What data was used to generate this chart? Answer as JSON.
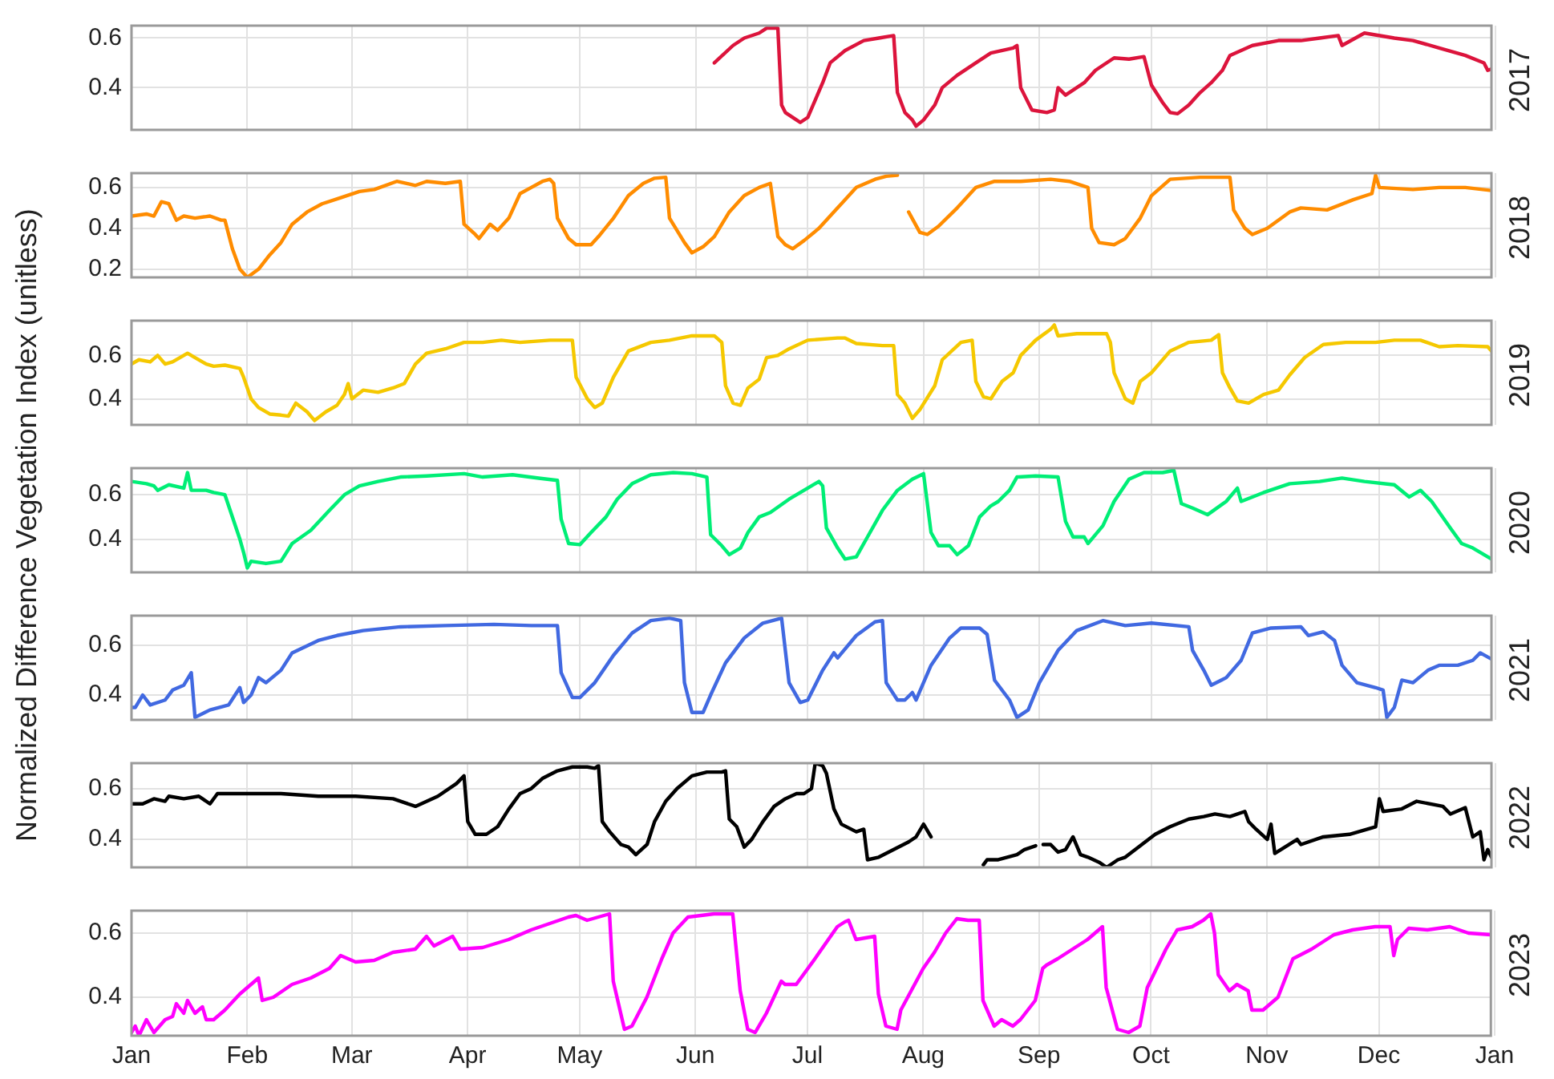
{
  "chart_data": [
    {
      "type": "line",
      "xlim": [
        "--01-01",
        "--12-31"
      ],
      "ylim": [
        0.23,
        0.65
      ],
      "yticks": [
        0.4,
        0.6
      ],
      "grid": true,
      "tick_labels": "y",
      "x": [
        "--06-06",
        "--06-11",
        "--06-14",
        "--06-18",
        "--06-20",
        "--06-23",
        "--06-24",
        "--06-25",
        "--06-28",
        "--06-29",
        "--07-01",
        "--07-03",
        "--07-05",
        "--07-07",
        "--07-11",
        "--07-16",
        "--07-20",
        "--07-24",
        "--07-25",
        "--07-27",
        "--07-29",
        "--07-30",
        "--08-01",
        "--08-04",
        "--08-06",
        "--08-10",
        "--08-15",
        "--08-19",
        "--08-25",
        "--08-26",
        "--08-27",
        "--08-30",
        "--09-03",
        "--09-05",
        "--09-06",
        "--09-08",
        "--09-13",
        "--09-16",
        "--09-18",
        "--09-21",
        "--09-25",
        "--09-29",
        "--10-01",
        "--10-04",
        "--10-06",
        "--10-08",
        "--10-11",
        "--10-14",
        "--10-17",
        "--10-20",
        "--10-22",
        "--10-28",
        "--11-04",
        "--11-10",
        "--11-15",
        "--11-20",
        "--11-21",
        "--11-27",
        "--12-05",
        "--12-10",
        "--12-17",
        "--12-24",
        "--12-29",
        "--12-30",
        "--12-31"
      ],
      "series": [
        {
          "name": "2017",
          "color": "#dc143c",
          "values": [
            0.5,
            0.57,
            0.6,
            0.62,
            0.64,
            0.64,
            0.33,
            0.3,
            0.27,
            0.26,
            0.28,
            0.35,
            0.42,
            0.5,
            0.55,
            0.59,
            0.6,
            0.61,
            0.38,
            0.3,
            0.27,
            0.245,
            0.27,
            0.33,
            0.4,
            0.45,
            0.5,
            0.54,
            0.56,
            0.57,
            0.4,
            0.31,
            0.3,
            0.31,
            0.4,
            0.37,
            0.42,
            0.47,
            0.49,
            0.52,
            0.515,
            0.525,
            0.41,
            0.34,
            0.3,
            0.295,
            0.33,
            0.38,
            0.42,
            0.47,
            0.53,
            0.57,
            0.59,
            0.59,
            0.6,
            0.61,
            0.57,
            0.62,
            0.6,
            0.59,
            0.56,
            0.53,
            0.5,
            0.47,
            0.475
          ]
        }
      ]
    },
    {
      "type": "line",
      "xlim": [
        "--01-01",
        "--12-31"
      ],
      "ylim": [
        0.16,
        0.67
      ],
      "yticks": [
        0.2,
        0.4,
        0.6
      ],
      "grid": true,
      "tick_labels": "y",
      "x": [
        "--01-01",
        "--01-05",
        "--01-07",
        "--01-09",
        "--01-11",
        "--01-13",
        "--01-15",
        "--01-18",
        "--01-22",
        "--01-25",
        "--01-26",
        "--01-28",
        "--01-30",
        "--02-01",
        "--02-04",
        "--02-07",
        "--02-10",
        "--02-13",
        "--02-17",
        "--02-21",
        "--02-26",
        "--03-03",
        "--03-07",
        "--03-13",
        "--03-18",
        "--03-21",
        "--03-26",
        "--03-30",
        "--03-31",
        "--04-03",
        "--04-04",
        "--04-07",
        "--04-09",
        "--04-12",
        "--04-15",
        "--04-18",
        "--04-21",
        "--04-23",
        "--04-24",
        "--04-25",
        "--04-28",
        "--04-30",
        "--05-04",
        "--05-06",
        "--05-10",
        "--05-14",
        "--05-18",
        "--05-21",
        "--05-24",
        "--05-25",
        "--05-29",
        "--05-31",
        "--06-03",
        "--06-06",
        "--06-10",
        "--06-14",
        "--06-18",
        "--06-21",
        "--06-23",
        "--06-25",
        "--06-27",
        "--06-30",
        "--07-04",
        "--07-09",
        "--07-14",
        "--07-19",
        "--07-22",
        "--07-25",
        "--07-26",
        "--07-28",
        "--07-31",
        "--08-02",
        "--08-05",
        "--08-10",
        "--08-15",
        "--08-20",
        "--08-27",
        "--09-04",
        "--09-09",
        "--09-14",
        "--09-15",
        "--09-17",
        "--09-21",
        "--09-24",
        "--09-28",
        "--10-01",
        "--10-06",
        "--10-14",
        "--10-22",
        "--10-23",
        "--10-26",
        "--10-28",
        "--11-01",
        "--11-07",
        "--11-10",
        "--11-17",
        "--11-24",
        "--11-29",
        "--11-30",
        "--12-01",
        "--12-10",
        "--12-17",
        "--12-24",
        "--12-31"
      ],
      "series": [
        {
          "name": "2018",
          "color": "#ff8c00",
          "values": [
            0.46,
            0.47,
            0.46,
            0.53,
            0.52,
            0.44,
            0.46,
            0.45,
            0.46,
            0.44,
            0.44,
            0.3,
            0.2,
            0.16,
            0.2,
            0.27,
            0.33,
            0.42,
            0.48,
            0.52,
            0.55,
            0.58,
            0.59,
            0.63,
            0.61,
            0.63,
            0.62,
            0.63,
            0.42,
            0.37,
            0.35,
            0.42,
            0.39,
            0.45,
            0.57,
            0.6,
            0.63,
            0.64,
            0.62,
            0.45,
            0.35,
            0.32,
            0.32,
            0.36,
            0.45,
            0.56,
            0.62,
            0.645,
            0.65,
            0.45,
            0.33,
            0.28,
            0.31,
            0.36,
            0.48,
            0.56,
            0.6,
            0.62,
            0.36,
            0.32,
            0.3,
            0.34,
            0.4,
            0.5,
            0.6,
            0.64,
            0.655,
            0.66,
            null,
            0.48,
            0.38,
            0.37,
            0.41,
            0.5,
            0.6,
            0.63,
            0.63,
            0.64,
            0.63,
            0.6,
            0.4,
            0.33,
            0.32,
            0.35,
            0.45,
            0.56,
            0.64,
            0.65,
            0.65,
            0.49,
            0.4,
            0.37,
            0.4,
            0.48,
            0.5,
            0.49,
            0.54,
            0.57,
            0.66,
            0.6,
            0.59,
            0.6,
            0.6,
            0.585
          ]
        }
      ]
    },
    {
      "type": "line",
      "xlim": [
        "--01-01",
        "--12-31"
      ],
      "ylim": [
        0.28,
        0.76
      ],
      "yticks": [
        0.4,
        0.6
      ],
      "grid": true,
      "tick_labels": "y",
      "x": [
        "--01-01",
        "--01-03",
        "--01-06",
        "--01-08",
        "--01-10",
        "--01-12",
        "--01-16",
        "--01-18",
        "--01-21",
        "--01-23",
        "--01-26",
        "--01-30",
        "--01-31",
        "--02-02",
        "--02-04",
        "--02-07",
        "--02-10",
        "--02-12",
        "--02-14",
        "--02-17",
        "--02-19",
        "--02-22",
        "--02-25",
        "--02-27",
        "--02-28",
        "--03-01",
        "--03-04",
        "--03-08",
        "--03-12",
        "--03-15",
        "--03-18",
        "--03-21",
        "--03-26",
        "--03-31",
        "--04-05",
        "--04-10",
        "--04-15",
        "--04-23",
        "--04-29",
        "--04-30",
        "--05-03",
        "--05-05",
        "--05-07",
        "--05-10",
        "--05-14",
        "--05-20",
        "--05-25",
        "--05-31",
        "--06-06",
        "--06-08",
        "--06-09",
        "--06-11",
        "--06-13",
        "--06-15",
        "--06-18",
        "--06-20",
        "--06-23",
        "--06-26",
        "--07-01",
        "--07-09",
        "--07-11",
        "--07-14",
        "--07-21",
        "--07-24",
        "--07-25",
        "--07-27",
        "--07-29",
        "--07-31",
        "--08-04",
        "--08-06",
        "--08-11",
        "--08-14",
        "--08-15",
        "--08-17",
        "--08-19",
        "--08-22",
        "--08-25",
        "--08-27",
        "--08-31",
        "--09-04",
        "--09-05",
        "--09-06",
        "--09-11",
        "--09-19",
        "--09-20",
        "--09-21",
        "--09-24",
        "--09-26",
        "--09-28",
        "--10-01",
        "--10-06",
        "--10-11",
        "--10-17",
        "--10-19",
        "--10-20",
        "--10-22",
        "--10-24",
        "--10-27",
        "--10-31",
        "--11-04",
        "--11-07",
        "--11-11",
        "--11-16",
        "--11-22",
        "--11-30",
        "--12-05",
        "--12-12",
        "--12-17",
        "--12-22",
        "--12-30",
        "--12-31"
      ],
      "series": [
        {
          "name": "2019",
          "color": "#f5c800",
          "values": [
            0.56,
            0.58,
            0.57,
            0.6,
            0.56,
            0.57,
            0.61,
            0.59,
            0.56,
            0.55,
            0.555,
            0.54,
            0.5,
            0.4,
            0.36,
            0.33,
            0.325,
            0.32,
            0.38,
            0.34,
            0.3,
            0.34,
            0.37,
            0.42,
            0.47,
            0.4,
            0.44,
            0.43,
            0.45,
            0.47,
            0.56,
            0.61,
            0.63,
            0.66,
            0.66,
            0.67,
            0.66,
            0.67,
            0.67,
            0.5,
            0.4,
            0.36,
            0.38,
            0.5,
            0.62,
            0.66,
            0.67,
            0.69,
            0.69,
            0.66,
            0.46,
            0.38,
            0.37,
            0.45,
            0.49,
            0.59,
            0.6,
            0.63,
            0.67,
            0.68,
            0.68,
            0.655,
            0.645,
            0.645,
            0.42,
            0.38,
            0.31,
            0.35,
            0.46,
            0.58,
            0.66,
            0.67,
            0.48,
            0.41,
            0.4,
            0.48,
            0.52,
            0.6,
            0.67,
            0.72,
            0.74,
            0.69,
            0.7,
            0.7,
            0.66,
            0.52,
            0.4,
            0.38,
            0.48,
            0.52,
            0.62,
            0.66,
            0.67,
            0.695,
            0.52,
            0.45,
            0.39,
            0.38,
            0.42,
            0.44,
            0.51,
            0.59,
            0.65,
            0.66,
            0.66,
            0.67,
            0.67,
            0.64,
            0.645,
            0.64,
            0.62
          ]
        }
      ]
    },
    {
      "type": "line",
      "ylabel": "Normalized Difference Vegetation Index (unitless)",
      "xlim": [
        "--01-01",
        "--12-31"
      ],
      "ylim": [
        0.25,
        0.72
      ],
      "yticks": [
        0.4,
        0.6
      ],
      "grid": true,
      "tick_labels": "y",
      "x": [
        "--01-01",
        "--01-05",
        "--01-07",
        "--01-08",
        "--01-11",
        "--01-15",
        "--01-16",
        "--01-17",
        "--01-21",
        "--01-23",
        "--01-26",
        "--01-27",
        "--01-30",
        "--01-31",
        "--02-01",
        "--02-02",
        "--02-06",
        "--02-10",
        "--02-13",
        "--02-18",
        "--02-23",
        "--02-27",
        "--03-03",
        "--03-08",
        "--03-14",
        "--03-21",
        "--03-31",
        "--04-05",
        "--04-13",
        "--04-20",
        "--04-25",
        "--04-26",
        "--04-28",
        "--05-01",
        "--05-04",
        "--05-08",
        "--05-11",
        "--05-15",
        "--05-20",
        "--05-26",
        "--05-31",
        "--06-04",
        "--06-05",
        "--06-08",
        "--06-10",
        "--06-13",
        "--06-15",
        "--06-18",
        "--06-21",
        "--06-26",
        "--07-01",
        "--07-04",
        "--07-05",
        "--07-06",
        "--07-09",
        "--07-11",
        "--07-14",
        "--07-17",
        "--07-21",
        "--07-25",
        "--07-29",
        "--08-01",
        "--08-03",
        "--08-05",
        "--08-08",
        "--08-10",
        "--08-13",
        "--08-16",
        "--08-19",
        "--08-21",
        "--08-24",
        "--08-26",
        "--08-31",
        "--09-06",
        "--09-08",
        "--09-10",
        "--09-13",
        "--09-14",
        "--09-18",
        "--09-21",
        "--09-25",
        "--09-29",
        "--10-04",
        "--10-07",
        "--10-09",
        "--10-12",
        "--10-16",
        "--10-21",
        "--10-24",
        "--10-25",
        "--10-31",
        "--11-07",
        "--11-15",
        "--11-21",
        "--11-27",
        "--12-05",
        "--12-09",
        "--12-12",
        "--12-15",
        "--12-20",
        "--12-23",
        "--12-26",
        "--12-30",
        "--12-31"
      ],
      "series": [
        {
          "name": "2020",
          "color": "#00ee76",
          "values": [
            0.66,
            0.65,
            0.64,
            0.62,
            0.645,
            0.63,
            0.7,
            0.62,
            0.62,
            0.61,
            0.6,
            0.55,
            0.4,
            0.34,
            0.27,
            0.3,
            0.29,
            0.3,
            0.38,
            0.44,
            0.53,
            0.6,
            0.64,
            0.66,
            0.68,
            0.685,
            0.695,
            0.68,
            0.69,
            0.675,
            0.665,
            0.49,
            0.38,
            0.375,
            0.43,
            0.5,
            0.58,
            0.65,
            0.69,
            0.7,
            0.695,
            0.68,
            0.42,
            0.37,
            0.33,
            0.36,
            0.43,
            0.5,
            0.52,
            0.58,
            0.63,
            0.66,
            0.64,
            0.45,
            0.36,
            0.31,
            0.32,
            0.41,
            0.53,
            0.62,
            0.67,
            0.695,
            0.43,
            0.37,
            0.37,
            0.33,
            0.37,
            0.5,
            0.55,
            0.57,
            0.62,
            0.68,
            0.685,
            0.68,
            0.48,
            0.41,
            0.41,
            0.38,
            0.46,
            0.57,
            0.67,
            0.7,
            0.7,
            0.71,
            0.56,
            0.54,
            0.51,
            0.57,
            0.63,
            0.57,
            0.61,
            0.65,
            0.66,
            0.675,
            0.66,
            0.645,
            0.59,
            0.62,
            0.57,
            0.45,
            0.38,
            0.36,
            0.32,
            0.31
          ]
        }
      ]
    },
    {
      "type": "line",
      "xlim": [
        "--01-01",
        "--12-31"
      ],
      "ylim": [
        0.3,
        0.72
      ],
      "yticks": [
        0.4,
        0.6
      ],
      "grid": true,
      "tick_labels": "y",
      "x": [
        "--01-01",
        "--01-02",
        "--01-04",
        "--01-06",
        "--01-10",
        "--01-12",
        "--01-15",
        "--01-17",
        "--01-18",
        "--01-22",
        "--01-27",
        "--01-30",
        "--01-31",
        "--02-02",
        "--02-04",
        "--02-06",
        "--02-10",
        "--02-13",
        "--02-20",
        "--02-25",
        "--03-04",
        "--03-14",
        "--03-26",
        "--04-08",
        "--04-18",
        "--04-25",
        "--04-26",
        "--04-29",
        "--05-01",
        "--05-05",
        "--05-10",
        "--05-15",
        "--05-20",
        "--05-25",
        "--05-28",
        "--05-29",
        "--05-31",
        "--06-03",
        "--06-05",
        "--06-09",
        "--06-14",
        "--06-19",
        "--06-24",
        "--06-26",
        "--06-29",
        "--07-01",
        "--07-05",
        "--07-08",
        "--07-09",
        "--07-14",
        "--07-19",
        "--07-21",
        "--07-22",
        "--07-25",
        "--07-27",
        "--07-29",
        "--07-30",
        "--08-03",
        "--08-08",
        "--08-11",
        "--08-16",
        "--08-18",
        "--08-20",
        "--08-24",
        "--08-26",
        "--08-29",
        "--09-01",
        "--09-06",
        "--09-11",
        "--09-18",
        "--09-24",
        "--10-01",
        "--10-11",
        "--10-12",
        "--10-15",
        "--10-17",
        "--10-21",
        "--10-25",
        "--10-28",
        "--11-02",
        "--11-10",
        "--11-12",
        "--11-16",
        "--11-19",
        "--11-21",
        "--11-25",
        "--11-30",
        "--12-02",
        "--12-03",
        "--12-05",
        "--12-07",
        "--12-10",
        "--12-14",
        "--12-17",
        "--12-22",
        "--12-26",
        "--12-28",
        "--12-31"
      ],
      "series": [
        {
          "name": "2021",
          "color": "#4169e1",
          "values": [
            0.35,
            0.35,
            0.4,
            0.36,
            0.38,
            0.42,
            0.44,
            0.49,
            0.31,
            0.34,
            0.36,
            0.43,
            0.37,
            0.4,
            0.47,
            0.45,
            0.5,
            0.57,
            0.62,
            0.64,
            0.66,
            0.675,
            0.68,
            0.685,
            0.68,
            0.68,
            0.49,
            0.39,
            0.39,
            0.45,
            0.56,
            0.65,
            0.7,
            0.71,
            0.7,
            0.45,
            0.33,
            0.33,
            0.4,
            0.53,
            0.63,
            0.69,
            0.71,
            0.45,
            0.37,
            0.38,
            0.5,
            0.57,
            0.55,
            0.64,
            0.695,
            0.7,
            0.45,
            0.38,
            0.38,
            0.41,
            0.38,
            0.52,
            0.63,
            0.67,
            0.67,
            0.645,
            0.46,
            0.38,
            0.31,
            0.34,
            0.45,
            0.58,
            0.66,
            0.7,
            0.68,
            0.69,
            0.675,
            0.58,
            0.5,
            0.44,
            0.47,
            0.54,
            0.65,
            0.67,
            0.675,
            0.64,
            0.655,
            0.62,
            0.52,
            0.45,
            0.43,
            0.42,
            0.31,
            0.35,
            0.46,
            0.45,
            0.5,
            0.52,
            0.52,
            0.54,
            0.57,
            0.545
          ]
        }
      ]
    },
    {
      "type": "line",
      "xlim": [
        "--01-01",
        "--12-31"
      ],
      "ylim": [
        0.29,
        0.7
      ],
      "yticks": [
        0.4,
        0.6
      ],
      "grid": true,
      "tick_labels": "y",
      "x": [
        "--01-01",
        "--01-04",
        "--01-07",
        "--01-10",
        "--01-11",
        "--01-15",
        "--01-19",
        "--01-22",
        "--01-24",
        "--01-31",
        "--02-10",
        "--02-20",
        "--03-02",
        "--03-12",
        "--03-18",
        "--03-24",
        "--03-29",
        "--03-31",
        "--04-01",
        "--04-03",
        "--04-06",
        "--04-09",
        "--04-12",
        "--04-15",
        "--04-18",
        "--04-21",
        "--04-25",
        "--04-29",
        "--05-03",
        "--05-05",
        "--05-06",
        "--05-07",
        "--05-09",
        "--05-12",
        "--05-14",
        "--05-16",
        "--05-19",
        "--05-21",
        "--05-24",
        "--05-27",
        "--05-31",
        "--06-04",
        "--06-08",
        "--06-09",
        "--06-10",
        "--06-12",
        "--06-14",
        "--06-16",
        "--06-19",
        "--06-22",
        "--06-25",
        "--06-28",
        "--06-30",
        "--07-02",
        "--07-03",
        "--07-05",
        "--07-06",
        "--07-08",
        "--07-10",
        "--07-14",
        "--07-16",
        "--07-17",
        "--07-20",
        "--07-24",
        "--07-28",
        "--07-30",
        "--08-01",
        "--08-03",
        "--08-09",
        "--08-17",
        "--08-18",
        "--08-21",
        "--08-26",
        "--08-28",
        "--08-31",
        "--09-01",
        "--09-02",
        "--09-04",
        "--09-06",
        "--09-08",
        "--09-10",
        "--09-12",
        "--09-14",
        "--09-17",
        "--09-19",
        "--09-22",
        "--09-24",
        "--09-28",
        "--10-02",
        "--10-06",
        "--10-11",
        "--10-15",
        "--10-18",
        "--10-22",
        "--10-26",
        "--10-27",
        "--10-29",
        "--11-01",
        "--11-02",
        "--11-03",
        "--11-09",
        "--11-10",
        "--11-16",
        "--11-23",
        "--11-30",
        "--12-01",
        "--12-02",
        "--12-07",
        "--12-11",
        "--12-18",
        "--12-20",
        "--12-24",
        "--12-26",
        "--12-28",
        "--12-29",
        "--12-30",
        "--12-31"
      ],
      "series": [
        {
          "name": "2022",
          "color": "#000000",
          "values": [
            0.54,
            0.54,
            0.56,
            0.55,
            0.57,
            0.56,
            0.57,
            0.54,
            0.58,
            0.58,
            0.58,
            0.57,
            0.57,
            0.56,
            0.53,
            0.57,
            0.62,
            0.65,
            0.47,
            0.42,
            0.42,
            0.45,
            0.52,
            0.58,
            0.6,
            0.64,
            0.67,
            0.685,
            0.685,
            0.68,
            0.69,
            0.47,
            0.43,
            0.38,
            0.37,
            0.34,
            0.38,
            0.47,
            0.55,
            0.6,
            0.65,
            0.665,
            0.665,
            0.67,
            0.48,
            0.45,
            0.37,
            0.4,
            0.47,
            0.53,
            0.56,
            0.58,
            0.58,
            0.6,
            0.7,
            0.69,
            0.66,
            0.52,
            0.46,
            0.43,
            0.44,
            0.32,
            0.33,
            0.36,
            0.39,
            0.41,
            0.46,
            0.41,
            null,
            0.3,
            0.32,
            0.32,
            0.34,
            0.36,
            0.375,
            null,
            0.38,
            0.38,
            0.35,
            0.36,
            0.41,
            0.34,
            0.33,
            0.31,
            0.29,
            0.32,
            0.33,
            0.375,
            0.42,
            0.45,
            0.48,
            0.49,
            0.5,
            0.49,
            0.51,
            0.47,
            0.44,
            0.4,
            0.46,
            0.345,
            0.4,
            0.38,
            0.41,
            0.42,
            0.45,
            0.56,
            0.51,
            0.52,
            0.55,
            0.53,
            0.5,
            0.525,
            0.41,
            0.43,
            0.32,
            0.36,
            0.33
          ]
        }
      ]
    },
    {
      "type": "line",
      "xlim": [
        "--01-01",
        "--12-31"
      ],
      "xticks": [
        {
          "value": "--01-01",
          "label": "Jan"
        },
        {
          "value": "--02-01",
          "label": "Feb"
        },
        {
          "value": "--03-01",
          "label": "Mar"
        },
        {
          "value": "--04-01",
          "label": "Apr"
        },
        {
          "value": "--05-01",
          "label": "May"
        },
        {
          "value": "--06-01",
          "label": "Jun"
        },
        {
          "value": "--07-01",
          "label": "Jul"
        },
        {
          "value": "--08-01",
          "label": "Aug"
        },
        {
          "value": "--09-01",
          "label": "Sep"
        },
        {
          "value": "--10-01",
          "label": "Oct"
        },
        {
          "value": "--11-01",
          "label": "Nov"
        },
        {
          "value": "--12-01",
          "label": "Dec"
        },
        {
          "value": "--12-31T24:00",
          "label": "Jan"
        }
      ],
      "ylim": [
        0.28,
        0.67
      ],
      "yticks": [
        0.4,
        0.6
      ],
      "grid": true,
      "x": [
        "--01-01",
        "--01-02",
        "--01-03",
        "--01-05",
        "--01-07",
        "--01-10",
        "--01-12",
        "--01-13",
        "--01-15",
        "--01-16",
        "--01-18",
        "--01-20",
        "--01-21",
        "--01-23",
        "--01-26",
        "--01-30",
        "--02-01",
        "--02-04",
        "--02-05",
        "--02-08",
        "--02-13",
        "--02-18",
        "--02-23",
        "--02-26",
        "--03-02",
        "--03-07",
        "--03-12",
        "--03-18",
        "--03-21",
        "--03-23",
        "--03-28",
        "--03-30",
        "--04-05",
        "--04-12",
        "--04-18",
        "--04-23",
        "--04-28",
        "--04-30",
        "--05-03",
        "--05-09",
        "--05-10",
        "--05-13",
        "--05-15",
        "--05-19",
        "--05-23",
        "--05-26",
        "--05-30",
        "--06-06",
        "--06-11",
        "--06-13",
        "--06-15",
        "--06-17",
        "--06-20",
        "--06-24",
        "--06-25",
        "--06-28",
        "--07-03",
        "--07-09",
        "--07-11",
        "--07-12",
        "--07-14",
        "--07-19",
        "--07-20",
        "--07-22",
        "--07-25",
        "--07-26",
        "--08-01",
        "--08-04",
        "--08-07",
        "--08-10",
        "--08-13",
        "--08-16",
        "--08-17",
        "--08-20",
        "--08-22",
        "--08-25",
        "--08-27",
        "--08-31",
        "--09-02",
        "--09-03",
        "--09-06",
        "--09-10",
        "--09-14",
        "--09-18",
        "--09-19",
        "--09-22",
        "--09-25",
        "--09-28",
        "--09-30",
        "--10-05",
        "--10-08",
        "--10-12",
        "--10-15",
        "--10-17",
        "--10-18",
        "--10-19",
        "--10-22",
        "--10-24",
        "--10-27",
        "--10-28",
        "--10-31",
        "--11-04",
        "--11-08",
        "--11-13",
        "--11-19",
        "--11-24",
        "--11-30",
        "--12-04",
        "--12-05",
        "--12-06",
        "--12-09",
        "--12-14",
        "--12-20",
        "--12-25",
        "--12-31"
      ],
      "series": [
        {
          "name": "2023",
          "color": "#ff00ff",
          "values": [
            0.29,
            0.31,
            0.28,
            0.33,
            0.29,
            0.33,
            0.34,
            0.38,
            0.35,
            0.39,
            0.35,
            0.37,
            0.33,
            0.33,
            0.36,
            0.41,
            0.43,
            0.46,
            0.39,
            0.4,
            0.44,
            0.46,
            0.49,
            0.53,
            0.51,
            0.515,
            0.54,
            0.55,
            0.59,
            0.56,
            0.59,
            0.55,
            0.555,
            0.58,
            0.61,
            0.63,
            0.65,
            0.655,
            0.64,
            0.66,
            0.45,
            0.3,
            0.31,
            0.4,
            0.52,
            0.6,
            0.65,
            0.66,
            0.66,
            0.42,
            0.3,
            0.29,
            0.35,
            0.45,
            0.44,
            0.44,
            0.52,
            0.62,
            0.635,
            0.64,
            0.58,
            0.59,
            0.41,
            0.31,
            0.3,
            0.36,
            0.49,
            0.54,
            0.6,
            0.645,
            0.64,
            0.64,
            0.39,
            0.31,
            0.33,
            0.31,
            0.33,
            0.39,
            0.49,
            0.5,
            0.52,
            0.55,
            0.58,
            0.62,
            0.43,
            0.3,
            0.29,
            0.31,
            0.43,
            0.55,
            0.61,
            0.62,
            0.64,
            0.66,
            0.6,
            0.47,
            0.42,
            0.44,
            0.42,
            0.36,
            0.36,
            0.4,
            0.52,
            0.55,
            0.595,
            0.61,
            0.62,
            0.62,
            0.53,
            0.58,
            0.615,
            0.61,
            0.62,
            0.6,
            0.595
          ]
        }
      ]
    }
  ]
}
